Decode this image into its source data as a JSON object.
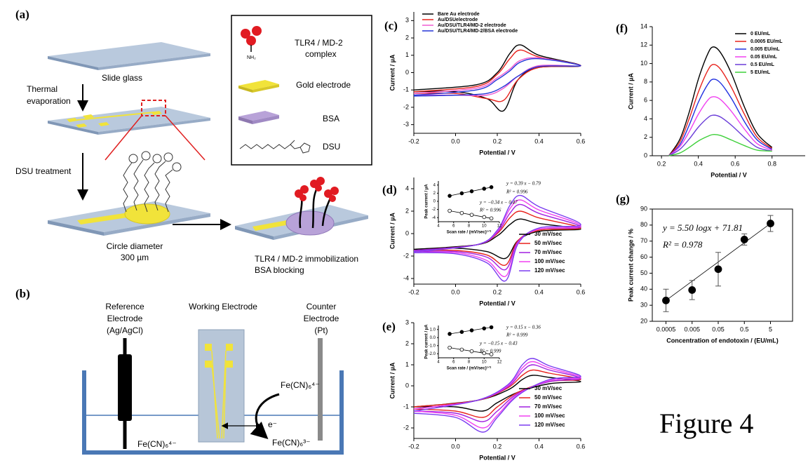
{
  "figure_caption": "Figure 4",
  "panel_a": {
    "label": "(a)",
    "slide_glass": "Slide glass",
    "thermal": "Thermal",
    "evaporation": "evaporation",
    "dsu_treatment": "DSU treatment",
    "circle_diameter": "Circle diameter",
    "diameter_value": "300 µm",
    "immobilization": "TLR4 / MD-2 immobilization",
    "blocking": "BSA blocking"
  },
  "legend_box": {
    "nh2": "NH₂",
    "complex_1": "TLR4 / MD-2",
    "complex_2": "complex",
    "gold": "Gold electrode",
    "bsa": "BSA",
    "dsu": "DSU"
  },
  "panel_b": {
    "label": "(b)",
    "reference": [
      "Reference",
      "Electrode",
      "(Ag/AgCl)"
    ],
    "working": "Working Electrode",
    "counter": [
      "Counter",
      "Electrode",
      "(Pt)"
    ],
    "ferro_right": "Fe(CN)₆⁴⁻",
    "electron": "e⁻",
    "ferri": "Fe(CN)₆³⁻",
    "ferro_bottom": "Fe(CN)₆⁴⁻"
  },
  "chart_data": [
    {
      "type": "line",
      "panel_label": "(c)",
      "xlabel": "Potential / V",
      "ylabel": "Current / µA",
      "xlim": [
        -0.2,
        0.6
      ],
      "ylim": [
        -3.5,
        3.5
      ],
      "xticks": [
        -0.2,
        {
          "value": 0,
          "label": "0.0"
        },
        0.2,
        0.4,
        0.6
      ],
      "yticks": [
        -3,
        -2,
        -1,
        0,
        1,
        2,
        3
      ],
      "legend": "upper left",
      "series": [
        {
          "name": "Bare Au electrode",
          "color": "#000000",
          "x": [
            -0.2,
            0.1,
            0.2,
            0.26,
            0.31,
            0.4,
            0.6,
            0.4,
            0.3,
            0.23,
            0.15,
            0.0,
            -0.2
          ],
          "values": [
            -1.0,
            -0.7,
            0.0,
            1.1,
            1.6,
            1.0,
            0.4,
            0.3,
            -0.4,
            -2.2,
            -1.5,
            -1.1,
            -1.1
          ]
        },
        {
          "name": "Au/DSUelectrode",
          "color": "#e8221c",
          "x": [
            -0.2,
            0.1,
            0.2,
            0.26,
            0.31,
            0.4,
            0.6,
            0.4,
            0.3,
            0.23,
            0.15,
            0.0,
            -0.2
          ],
          "values": [
            -1.1,
            -0.8,
            -0.1,
            0.8,
            1.3,
            0.9,
            0.4,
            0.3,
            -0.4,
            -1.6,
            -1.5,
            -1.2,
            -1.2
          ]
        },
        {
          "name": "Au/DSU/TLR4/MD-2 electrode",
          "color": "#f05ad0",
          "x": [
            -0.2,
            0.1,
            0.2,
            0.26,
            0.31,
            0.4,
            0.6,
            0.4,
            0.3,
            0.23,
            0.15,
            0.0,
            -0.2
          ],
          "values": [
            -1.2,
            -0.9,
            -0.3,
            0.2,
            0.7,
            0.85,
            0.4,
            0.4,
            -0.2,
            -0.9,
            -1.3,
            -1.3,
            -1.3
          ]
        },
        {
          "name": "Au/DSU/TLR4/MD-2/BSA electrode",
          "color": "#2436d8",
          "x": [
            -0.2,
            0.1,
            0.2,
            0.26,
            0.31,
            0.4,
            0.6,
            0.4,
            0.3,
            0.23,
            0.15,
            0.0,
            -0.2
          ],
          "values": [
            -1.3,
            -1.0,
            -0.4,
            0.1,
            0.6,
            0.8,
            0.4,
            0.35,
            -0.2,
            -0.8,
            -1.2,
            -1.3,
            -1.35
          ]
        }
      ]
    },
    {
      "type": "line",
      "panel_label": "(d)",
      "xlabel": "Potential / V",
      "ylabel": "Current / µA",
      "xlim": [
        -0.2,
        0.6
      ],
      "ylim": [
        -4.5,
        5
      ],
      "xticks": [
        -0.2,
        {
          "value": 0,
          "label": "0.0"
        },
        0.2,
        0.4,
        0.6
      ],
      "yticks": [
        -4,
        -2,
        0,
        2,
        4
      ],
      "legend": "lower right",
      "series": [
        {
          "name": "30 mV/sec",
          "color": "#000000",
          "x": [
            -0.2,
            0.1,
            0.2,
            0.26,
            0.31,
            0.4,
            0.6,
            0.4,
            0.3,
            0.24,
            0.15,
            0.0,
            -0.2
          ],
          "values": [
            -1.4,
            -1.0,
            -0.2,
            0.8,
            1.3,
            0.9,
            0.4,
            0.2,
            -0.6,
            -2.2,
            -1.6,
            -1.3,
            -1.4
          ]
        },
        {
          "name": "50 mV/sec",
          "color": "#e8221c",
          "x": [
            -0.2,
            0.1,
            0.2,
            0.26,
            0.31,
            0.4,
            0.6,
            0.4,
            0.3,
            0.24,
            0.15,
            0.0,
            -0.2
          ],
          "values": [
            -1.5,
            -1.0,
            0.0,
            1.4,
            2.0,
            1.4,
            0.5,
            0.3,
            -0.6,
            -2.8,
            -1.9,
            -1.5,
            -1.5
          ]
        },
        {
          "name": "70 mV/sec",
          "color": "#a020e0",
          "x": [
            -0.2,
            0.1,
            0.2,
            0.26,
            0.31,
            0.4,
            0.6,
            0.4,
            0.3,
            0.24,
            0.15,
            0.0,
            -0.2
          ],
          "values": [
            -1.5,
            -1.0,
            0.1,
            1.8,
            2.6,
            1.8,
            0.6,
            0.4,
            -0.7,
            -3.2,
            -2.1,
            -1.6,
            -1.6
          ]
        },
        {
          "name": "100 mV/sec",
          "color": "#f040f0",
          "x": [
            -0.2,
            0.1,
            0.2,
            0.26,
            0.31,
            0.4,
            0.6,
            0.4,
            0.3,
            0.24,
            0.15,
            0.0,
            -0.2
          ],
          "values": [
            -1.6,
            -1.0,
            0.2,
            2.2,
            3.0,
            2.1,
            0.7,
            0.4,
            -0.8,
            -3.8,
            -2.4,
            -1.7,
            -1.7
          ]
        },
        {
          "name": "120 mV/sec",
          "color": "#7a3cf0",
          "x": [
            -0.2,
            0.1,
            0.2,
            0.26,
            0.31,
            0.4,
            0.6,
            0.4,
            0.3,
            0.24,
            0.15,
            0.0,
            -0.2
          ],
          "values": [
            -1.6,
            -1.0,
            0.3,
            2.5,
            3.4,
            2.4,
            0.8,
            0.5,
            -0.9,
            -4.2,
            -2.6,
            -1.8,
            -1.7
          ]
        }
      ]
    },
    {
      "type": "line",
      "panel_label": "(e)",
      "xlabel": "Potential / V",
      "ylabel": "Current / µA",
      "xlim": [
        -0.2,
        0.6
      ],
      "ylim": [
        -2.5,
        3
      ],
      "xticks": [
        -0.2,
        {
          "value": 0,
          "label": "0.0"
        },
        0.2,
        0.4,
        0.6
      ],
      "yticks": [
        -2,
        -1,
        0,
        1,
        2,
        3
      ],
      "legend": "lower right",
      "series": [
        {
          "name": "30 mV/sec",
          "color": "#000000",
          "x": [
            -0.2,
            0.1,
            0.25,
            0.32,
            0.37,
            0.45,
            0.6,
            0.45,
            0.3,
            0.2,
            0.13,
            0.0,
            -0.2
          ],
          "values": [
            -1.0,
            -0.7,
            -0.2,
            0.3,
            0.5,
            0.4,
            0.2,
            0.1,
            -0.3,
            -0.8,
            -1.2,
            -1.0,
            -1.0
          ]
        },
        {
          "name": "50 mV/sec",
          "color": "#e8221c",
          "x": [
            -0.2,
            0.1,
            0.25,
            0.32,
            0.37,
            0.45,
            0.6,
            0.45,
            0.3,
            0.2,
            0.13,
            0.0,
            -0.2
          ],
          "values": [
            -1.0,
            -0.7,
            -0.1,
            0.5,
            0.75,
            0.6,
            0.3,
            0.2,
            -0.3,
            -1.0,
            -1.5,
            -1.2,
            -1.1
          ]
        },
        {
          "name": "70 mV/sec",
          "color": "#a020e0",
          "x": [
            -0.2,
            0.1,
            0.25,
            0.32,
            0.37,
            0.45,
            0.6,
            0.45,
            0.3,
            0.2,
            0.13,
            0.0,
            -0.2
          ],
          "values": [
            -1.1,
            -0.7,
            -0.05,
            0.7,
            1.0,
            0.75,
            0.35,
            0.2,
            -0.35,
            -1.2,
            -1.7,
            -1.3,
            -1.2
          ]
        },
        {
          "name": "100 mV/sec",
          "color": "#f040f0",
          "x": [
            -0.2,
            0.1,
            0.25,
            0.32,
            0.37,
            0.45,
            0.6,
            0.45,
            0.3,
            0.2,
            0.13,
            0.0,
            -0.2
          ],
          "values": [
            -1.1,
            -0.7,
            0.0,
            0.85,
            1.15,
            0.85,
            0.4,
            0.25,
            -0.4,
            -1.4,
            -2.0,
            -1.4,
            -1.2
          ]
        },
        {
          "name": "120 mV/sec",
          "color": "#7a3cf0",
          "x": [
            -0.2,
            0.1,
            0.25,
            0.32,
            0.37,
            0.45,
            0.6,
            0.45,
            0.3,
            0.2,
            0.13,
            0.0,
            -0.2
          ],
          "values": [
            -1.2,
            -0.7,
            0.05,
            1.0,
            1.3,
            0.95,
            0.45,
            0.3,
            -0.45,
            -1.5,
            -2.2,
            -1.5,
            -1.3
          ]
        }
      ]
    },
    {
      "type": "scatter",
      "xlabel": "Scan rate / (mV/sec)¹ᐟ²",
      "ylabel": "Peak current / µA",
      "xlim": [
        4,
        12
      ],
      "ylim": [
        -5,
        5
      ],
      "xticks": [
        4,
        6,
        8,
        10,
        12
      ],
      "yticks": [
        -4,
        -2,
        0,
        2,
        4
      ],
      "fit_line": true,
      "x": [
        5.48,
        7.07,
        8.37,
        10,
        10.95
      ],
      "series": [
        {
          "marker": "filled",
          "color": "#000000",
          "values": [
            1.35,
            1.97,
            2.47,
            3.11,
            3.48
          ]
        },
        {
          "marker": "open",
          "color": "#000000",
          "values": [
            -2.33,
            -2.87,
            -3.32,
            -3.87,
            -4.19
          ]
        }
      ],
      "annotations": [
        "y = 0.39 x − 0.79",
        "R² = 0.996",
        "y = −0.34 x − 0.47",
        "R² = 0.996"
      ]
    },
    {
      "type": "scatter",
      "xlabel": "Scan rate / (mV/sec)¹ᐟ²",
      "ylabel": "Peak current / µA",
      "xlim": [
        4,
        12
      ],
      "ylim": [
        -2.5,
        1.5
      ],
      "xticks": [
        4,
        6,
        8,
        10,
        12
      ],
      "yticks": [
        {
          "value": -2,
          "label": "-2.0"
        },
        {
          "value": -1,
          "label": "-1.0"
        },
        {
          "value": 0,
          "label": "0.0"
        },
        {
          "value": 1,
          "label": "1.0"
        }
      ],
      "fit_line": true,
      "x": [
        5.48,
        7.07,
        8.37,
        10,
        10.95
      ],
      "series": [
        {
          "marker": "filled",
          "color": "#000000",
          "values": [
            0.46,
            0.7,
            0.9,
            1.14,
            1.28
          ]
        },
        {
          "marker": "open",
          "color": "#000000",
          "values": [
            -1.25,
            -1.49,
            -1.69,
            -1.93,
            -2.07
          ]
        }
      ],
      "annotations": [
        "y = 0.15 x − 0.36",
        "R² = 0.999",
        "y = −0.15 x − 0.43",
        "R² = 0.999"
      ]
    },
    {
      "type": "line",
      "panel_label": "(f)",
      "xlabel": "Potential / V",
      "ylabel": "Current / µA",
      "xlim": [
        0.15,
        0.98
      ],
      "ylim": [
        0,
        14
      ],
      "xticks": [
        0.2,
        0.4,
        0.6,
        0.8
      ],
      "yticks": [
        0,
        2,
        4,
        6,
        8,
        10,
        12,
        14
      ],
      "legend": "upper right",
      "x": [
        0.24,
        0.3,
        0.35,
        0.4,
        0.45,
        0.48,
        0.52,
        0.58,
        0.65,
        0.72,
        0.8
      ],
      "series": [
        {
          "name": "0 EU/mL",
          "color": "#000000",
          "values": [
            0,
            1.8,
            4.7,
            8.3,
            11,
            11.8,
            11.2,
            8.9,
            5.3,
            2.4,
            0.9
          ]
        },
        {
          "name": "0.0005 EU/mL",
          "color": "#e8221c",
          "values": [
            0,
            1.5,
            4.0,
            6.9,
            9.2,
            9.9,
            9.4,
            7.4,
            4.5,
            2.0,
            0.8
          ]
        },
        {
          "name": "0.005 EU/mL",
          "color": "#1f2fe0",
          "values": [
            0,
            1.2,
            3.3,
            5.8,
            7.7,
            8.3,
            7.9,
            6.2,
            3.7,
            1.7,
            0.7
          ]
        },
        {
          "name": "0.05 EU/mL",
          "color": "#f040f0",
          "values": [
            0,
            1.0,
            2.6,
            4.5,
            6.0,
            6.4,
            6.1,
            4.8,
            2.9,
            1.3,
            0.6
          ]
        },
        {
          "name": "0.5 EU/mL",
          "color": "#6a3cd8",
          "values": [
            0,
            0.7,
            1.8,
            3.1,
            4.1,
            4.4,
            4.2,
            3.3,
            2.0,
            0.9,
            0.5
          ]
        },
        {
          "name": "5 EU/mL",
          "color": "#3ed03a",
          "values": [
            0,
            0.3,
            0.9,
            1.6,
            2.1,
            2.3,
            2.2,
            1.7,
            1.1,
            0.6,
            0.5
          ]
        }
      ]
    },
    {
      "type": "scatter",
      "panel_label": "(g)",
      "xlabel": "Concentration of endotoxin / (EU/mL)",
      "ylabel": "Peak current change / %",
      "log_x": true,
      "frame": true,
      "fit_line": true,
      "xlim": [
        0.00015,
        35
      ],
      "ylim": [
        20,
        90
      ],
      "xticks": [
        0.0005,
        0.005,
        0.05,
        0.5,
        5
      ],
      "yticks": [
        20,
        30,
        40,
        50,
        60,
        70,
        80,
        90
      ],
      "x": [
        0.0005,
        0.005,
        0.05,
        0.5,
        5
      ],
      "series": [
        {
          "marker": "filled",
          "color": "#000000",
          "values": [
            33,
            39.5,
            52.5,
            71,
            81
          ],
          "errors": [
            7,
            6,
            10.5,
            3.5,
            5
          ]
        }
      ],
      "annotations": [
        "y = 5.50 logx + 71.81",
        "R² = 0.978"
      ]
    }
  ]
}
